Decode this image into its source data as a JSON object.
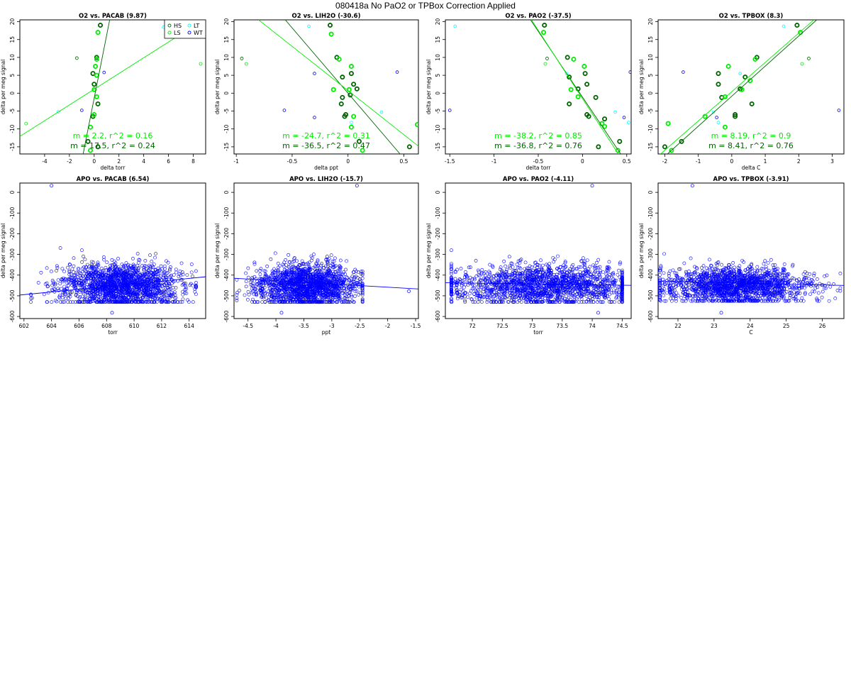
{
  "page": {
    "title": "080418a   No PaO2 or TPBox Correction Applied"
  },
  "colors": {
    "HS": "#006400",
    "LS": "#00ee00",
    "LT": "#00ffff",
    "WT": "#0000ff",
    "apo": "#0000ff",
    "axis": "#000000"
  },
  "chart_data": [
    {
      "type": "scatter",
      "title": "O2 vs. PACAB (9.87)",
      "xlabel": "delta torr",
      "ylabel": "delta per meg signal",
      "xlim": [
        -6,
        9
      ],
      "ylim": [
        -17,
        20.5
      ],
      "xticks": [
        -4,
        -2,
        0,
        2,
        4,
        6,
        8
      ],
      "yticks": [
        -15,
        -10,
        -5,
        0,
        5,
        10,
        15,
        20
      ],
      "legend": {
        "placement": "top-right",
        "entries": [
          {
            "name": "HS",
            "color": "#006400"
          },
          {
            "name": "LT",
            "color": "#00ffff"
          },
          {
            "name": "LS",
            "color": "#00ee00"
          },
          {
            "name": "WT",
            "color": "#0000ff"
          }
        ]
      },
      "series": [
        {
          "name": "HS",
          "color": "#006400",
          "points": [
            [
              0.5,
              19
            ],
            [
              0.2,
              10
            ],
            [
              -0.1,
              5.5
            ],
            [
              0,
              2.5
            ],
            [
              0.3,
              -3
            ],
            [
              -0.1,
              -6.5
            ],
            [
              -0.5,
              -13.5
            ],
            [
              0.3,
              -15
            ]
          ]
        },
        {
          "name": "LS",
          "color": "#00ee00",
          "points": [
            [
              0.3,
              17
            ],
            [
              0.2,
              9.5
            ],
            [
              0.1,
              7.5
            ],
            [
              0.2,
              5
            ],
            [
              0,
              1
            ],
            [
              0.2,
              -1
            ],
            [
              0,
              -6
            ],
            [
              -0.3,
              -9.5
            ],
            [
              -0.3,
              -16
            ]
          ]
        },
        {
          "name": "LT",
          "color": "#00ffff",
          "points": [
            [
              5.6,
              18.5
            ],
            [
              -2.9,
              -5.2
            ]
          ]
        },
        {
          "name": "WT",
          "color": "#0000ff",
          "points": [
            [
              0.8,
              5.8
            ],
            [
              -1.0,
              -4.8
            ]
          ]
        }
      ],
      "small_points": [
        {
          "color": "#006400",
          "points": [
            [
              -1.4,
              9.8
            ]
          ]
        },
        {
          "color": "#00ee00",
          "points": [
            [
              8.6,
              8.2
            ],
            [
              -5.5,
              -8.5
            ]
          ]
        }
      ],
      "fit_lines": [
        {
          "color": "#006400",
          "slope": 17.5,
          "x_at_yzero": 0.08
        },
        {
          "color": "#00ee00",
          "slope": 2.2,
          "x_at_yzero": -0.5
        }
      ],
      "annotations": [
        {
          "text": "m = 2.2, r^2 = 0.16",
          "color": "#00ee00"
        },
        {
          "text": "m = 17.5, r^2 = 0.24",
          "color": "#006400"
        }
      ]
    },
    {
      "type": "scatter",
      "title": "O2 vs. LIH2O (-30.6)",
      "xlabel": "delta ppt",
      "ylabel": "delta per meg signal",
      "xlim": [
        -1.02,
        0.63
      ],
      "ylim": [
        -17,
        20.5
      ],
      "xticks": [
        -1.0,
        -0.5,
        0.0,
        0.5
      ],
      "yticks": [
        -15,
        -10,
        -5,
        0,
        5,
        10,
        15,
        20
      ],
      "series": [
        {
          "name": "HS",
          "color": "#006400",
          "points": [
            [
              -0.16,
              19
            ],
            [
              -0.1,
              10
            ],
            [
              -0.05,
              4.5
            ],
            [
              0.03,
              5.5
            ],
            [
              0.05,
              2.5
            ],
            [
              0.08,
              1.2
            ],
            [
              0.02,
              -0.5
            ],
            [
              -0.05,
              -1.2
            ],
            [
              -0.06,
              -3
            ],
            [
              -0.02,
              -6
            ],
            [
              -0.03,
              -6.5
            ],
            [
              0.1,
              -13.5
            ],
            [
              0.55,
              -15
            ]
          ]
        },
        {
          "name": "LS",
          "color": "#00ee00",
          "points": [
            [
              -0.15,
              16.5
            ],
            [
              -0.08,
              9.5
            ],
            [
              0.03,
              7.5
            ],
            [
              -0.13,
              1
            ],
            [
              0.01,
              1
            ],
            [
              0.05,
              -6.5
            ],
            [
              0.03,
              -9.5
            ],
            [
              0.13,
              -16
            ],
            [
              0.62,
              -8.8
            ]
          ]
        },
        {
          "name": "LT",
          "color": "#00ffff",
          "points": [
            [
              -0.35,
              18.7
            ],
            [
              0.03,
              -8.2
            ],
            [
              0.3,
              -5.3
            ]
          ]
        },
        {
          "name": "WT",
          "color": "#0000ff",
          "points": [
            [
              -0.3,
              5.5
            ],
            [
              0.44,
              5.9
            ],
            [
              -0.57,
              -4.8
            ],
            [
              -0.3,
              -6.8
            ]
          ]
        }
      ],
      "small_points": [
        {
          "color": "#006400",
          "points": [
            [
              -0.95,
              9.7
            ]
          ]
        },
        {
          "color": "#00ee00",
          "points": [
            [
              -0.91,
              8.2
            ]
          ]
        }
      ],
      "fit_lines": [
        {
          "color": "#006400",
          "slope": -36.5,
          "x_at_yzero": 0.0
        },
        {
          "color": "#00ee00",
          "slope": -24.7,
          "x_at_yzero": 0.03
        }
      ],
      "annotations": [
        {
          "text": "m = -24.7, r^2 = 0.31",
          "color": "#00ee00"
        },
        {
          "text": "m = -36.5, r^2 = 0.47",
          "color": "#006400"
        }
      ]
    },
    {
      "type": "scatter",
      "title": "O2 vs. PAO2 (-37.5)",
      "xlabel": "delta torr",
      "ylabel": "delta per meg signal",
      "xlim": [
        -1.55,
        0.55
      ],
      "ylim": [
        -17,
        20.5
      ],
      "xticks": [
        -1.5,
        -1.0,
        -0.5,
        0.0,
        0.5
      ],
      "yticks": [
        -15,
        -10,
        -5,
        0,
        5,
        10,
        15,
        20
      ],
      "series": [
        {
          "name": "HS",
          "color": "#006400",
          "points": [
            [
              -0.43,
              19
            ],
            [
              -0.17,
              10
            ],
            [
              -0.15,
              4.5
            ],
            [
              0.03,
              5.5
            ],
            [
              0.05,
              2.5
            ],
            [
              0.15,
              -1.2
            ],
            [
              -0.05,
              1.2
            ],
            [
              -0.15,
              -3
            ],
            [
              0.05,
              -6
            ],
            [
              0.07,
              -6.5
            ],
            [
              0.25,
              -7.2
            ],
            [
              0.42,
              -13.5
            ],
            [
              0.18,
              -15
            ]
          ]
        },
        {
          "name": "LS",
          "color": "#00ee00",
          "points": [
            [
              -0.44,
              17
            ],
            [
              -0.1,
              9.5
            ],
            [
              0.02,
              7.5
            ],
            [
              -0.13,
              1
            ],
            [
              -0.05,
              -1
            ],
            [
              0.22,
              -8.5
            ],
            [
              0.25,
              -9.3
            ],
            [
              0.4,
              -16
            ]
          ]
        },
        {
          "name": "LT",
          "color": "#00ffff",
          "points": [
            [
              -1.44,
              18.7
            ],
            [
              -0.18,
              5.5
            ],
            [
              0.37,
              -5.3
            ],
            [
              0.52,
              -8.2
            ]
          ]
        },
        {
          "name": "WT",
          "color": "#0000ff",
          "points": [
            [
              0.54,
              5.9
            ],
            [
              -1.5,
              -4.8
            ],
            [
              0.47,
              -6.8
            ]
          ]
        }
      ],
      "small_points": [
        {
          "color": "#006400",
          "points": [
            [
              -0.4,
              9.7
            ]
          ]
        },
        {
          "color": "#00ee00",
          "points": [
            [
              -0.42,
              8.2
            ]
          ]
        }
      ],
      "fit_lines": [
        {
          "color": "#006400",
          "slope": -36.8,
          "x_at_yzero": -0.03
        },
        {
          "color": "#00ee00",
          "slope": -38.2,
          "x_at_yzero": -0.04
        }
      ],
      "annotations": [
        {
          "text": "m = -38.2, r^2 = 0.85",
          "color": "#00ee00"
        },
        {
          "text": "m = -36.8, r^2 = 0.76",
          "color": "#006400"
        }
      ]
    },
    {
      "type": "scatter",
      "title": "O2 vs. TPBOX (8.3)",
      "xlabel": "delta C",
      "ylabel": "delta per meg signal",
      "xlim": [
        -2.2,
        3.35
      ],
      "ylim": [
        -17,
        20.5
      ],
      "xticks": [
        -2,
        -1,
        0,
        1,
        2,
        3
      ],
      "yticks": [
        -15,
        -10,
        -5,
        0,
        5,
        10,
        15,
        20
      ],
      "series": [
        {
          "name": "HS",
          "color": "#006400",
          "points": [
            [
              1.95,
              19
            ],
            [
              0.75,
              10
            ],
            [
              -0.4,
              5.5
            ],
            [
              0.4,
              4.5
            ],
            [
              -0.4,
              2.5
            ],
            [
              0.25,
              1.2
            ],
            [
              -0.3,
              -1.2
            ],
            [
              0.6,
              -3
            ],
            [
              0.1,
              -6
            ],
            [
              0.1,
              -6.5
            ],
            [
              -1.5,
              -13.5
            ],
            [
              -2.0,
              -15
            ]
          ]
        },
        {
          "name": "LS",
          "color": "#00ee00",
          "points": [
            [
              2.05,
              17
            ],
            [
              0.7,
              9.5
            ],
            [
              -0.1,
              7.5
            ],
            [
              0.55,
              3.5
            ],
            [
              0.3,
              1
            ],
            [
              -0.2,
              -1
            ],
            [
              -0.8,
              -6.5
            ],
            [
              -0.2,
              -9.5
            ],
            [
              -1.9,
              -8.5
            ],
            [
              -1.8,
              -16
            ]
          ]
        },
        {
          "name": "LT",
          "color": "#00ffff",
          "points": [
            [
              1.55,
              18.7
            ],
            [
              0.25,
              5.5
            ],
            [
              -0.55,
              -5.3
            ],
            [
              -0.4,
              -8.2
            ]
          ]
        },
        {
          "name": "WT",
          "color": "#0000ff",
          "points": [
            [
              -1.45,
              5.9
            ],
            [
              3.2,
              -4.8
            ],
            [
              -0.45,
              -6.8
            ]
          ]
        }
      ],
      "small_points": [
        {
          "color": "#006400",
          "points": [
            [
              2.3,
              9.7
            ]
          ]
        },
        {
          "color": "#00ee00",
          "points": [
            [
              2.1,
              8.2
            ]
          ]
        }
      ],
      "fit_lines": [
        {
          "color": "#006400",
          "slope": 8.41,
          "x_at_yzero": 0.1
        },
        {
          "color": "#00ee00",
          "slope": 8.19,
          "x_at_yzero": -0.05
        }
      ],
      "annotations": [
        {
          "text": "m = 8.19, r^2 = 0.9",
          "color": "#00ee00"
        },
        {
          "text": "m = 8.41, r^2 = 0.76",
          "color": "#006400"
        }
      ]
    },
    {
      "type": "scatter",
      "title": "APO vs. PACAB (6.54)",
      "xlabel": "torr",
      "ylabel": "delta per meg signal",
      "xlim": [
        601.7,
        615.2
      ],
      "ylim": [
        -610,
        45
      ],
      "xticks": [
        602,
        604,
        606,
        608,
        610,
        612,
        614
      ],
      "yticks": [
        -600,
        -500,
        -400,
        -300,
        -200,
        -100,
        0
      ],
      "cloud": {
        "color": "#0000ff",
        "count": 1700,
        "x_center": 609,
        "x_spread": 2.2,
        "x_min": 602.5,
        "x_max": 614.5,
        "y_center": -440,
        "y_spread": 48,
        "y_min": -530,
        "y_max": -260
      },
      "outliers": [
        [
          604,
          32
        ],
        [
          608.4,
          -582
        ]
      ],
      "fit_lines": [
        {
          "color": "#0000ff",
          "slope": 6.54,
          "x_at_yzero": 677.6
        }
      ]
    },
    {
      "type": "scatter",
      "title": "APO vs. LIH2O (-15.7)",
      "xlabel": "ppt",
      "ylabel": "delta per meg signal",
      "xlim": [
        -4.75,
        -1.45
      ],
      "ylim": [
        -610,
        45
      ],
      "xticks": [
        -4.5,
        -4.0,
        -3.5,
        -3.0,
        -2.5,
        -2.0,
        -1.5
      ],
      "yticks": [
        -600,
        -500,
        -400,
        -300,
        -200,
        -100,
        0
      ],
      "cloud": {
        "color": "#0000ff",
        "count": 1700,
        "x_center": -3.45,
        "x_spread": 0.45,
        "x_min": -4.7,
        "x_max": -2.45,
        "y_center": -440,
        "y_spread": 48,
        "y_min": -530,
        "y_max": -270
      },
      "outliers": [
        [
          -2.55,
          32
        ],
        [
          -3.9,
          -582
        ],
        [
          -1.62,
          -478
        ]
      ],
      "fit_lines": [
        {
          "color": "#0000ff",
          "slope": -15.7,
          "x_at_yzero": -31.2
        }
      ]
    },
    {
      "type": "scatter",
      "title": "APO vs. PAO2 (-4.11)",
      "xlabel": "torr",
      "ylabel": "delta per meg signal",
      "xlim": [
        71.55,
        74.65
      ],
      "ylim": [
        -610,
        45
      ],
      "xticks": [
        72.0,
        72.5,
        73.0,
        73.5,
        74.0,
        74.5
      ],
      "yticks": [
        -600,
        -500,
        -400,
        -300,
        -200,
        -100,
        0
      ],
      "cloud": {
        "color": "#0000ff",
        "count": 1700,
        "x_center": 73.2,
        "x_spread": 0.8,
        "x_min": 71.65,
        "x_max": 74.5,
        "y_center": -440,
        "y_spread": 45,
        "y_min": -530,
        "y_max": -265
      },
      "outliers": [
        [
          74.0,
          32
        ],
        [
          74.1,
          -582
        ]
      ],
      "fit_lines": [
        {
          "color": "#0000ff",
          "slope": -4.11,
          "x_at_yzero": -34.7
        }
      ]
    },
    {
      "type": "scatter",
      "title": "APO vs. TPBOX (-3.91)",
      "xlabel": "C",
      "ylabel": "delta per meg signal",
      "xlim": [
        21.45,
        26.6
      ],
      "ylim": [
        -610,
        45
      ],
      "xticks": [
        22,
        23,
        24,
        25,
        26
      ],
      "yticks": [
        -600,
        -500,
        -400,
        -300,
        -200,
        -100,
        0
      ],
      "cloud": {
        "color": "#0000ff",
        "count": 1700,
        "x_center": 23.6,
        "x_spread": 1.0,
        "x_min": 21.5,
        "x_max": 26.5,
        "y_center": -440,
        "y_spread": 40,
        "y_min": -525,
        "y_max": -265
      },
      "outliers": [
        [
          22.4,
          32
        ],
        [
          23.2,
          -582
        ]
      ],
      "fit_lines": [
        {
          "color": "#0000ff",
          "slope": -3.91,
          "x_at_yzero": -88.5
        }
      ]
    }
  ]
}
